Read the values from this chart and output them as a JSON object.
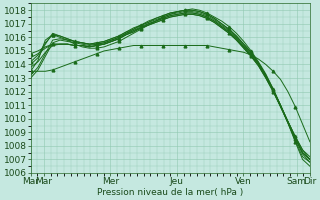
{
  "xlabel": "Pression niveau de la mer( hPa )",
  "background_color": "#c5e8e0",
  "plot_bg_color": "#c5e8e0",
  "grid_color": "#90c8b0",
  "line_color": "#1a6b1a",
  "ylim": [
    1006,
    1018.5
  ],
  "yticks": [
    1006,
    1007,
    1008,
    1009,
    1010,
    1011,
    1012,
    1013,
    1014,
    1015,
    1016,
    1017,
    1018
  ],
  "xtick_labels": [
    "Mar",
    "Mar",
    "Mer",
    "Jeu",
    "Ven",
    "Sam",
    "Dir"
  ],
  "xtick_positions": [
    0,
    8,
    48,
    88,
    128,
    160,
    168
  ],
  "total_hours": 168,
  "lines": [
    {
      "y": [
        1013.5,
        1014.3,
        1015.8,
        1016.2,
        1016.0,
        1015.8,
        1015.5,
        1015.3,
        1015.2,
        1015.2,
        1015.3,
        1015.5,
        1015.7,
        1016.0,
        1016.3,
        1016.6,
        1016.9,
        1017.2,
        1017.5,
        1017.7,
        1017.9,
        1018.0,
        1018.1,
        1018.0,
        1017.8,
        1017.5,
        1017.2,
        1016.8,
        1016.3,
        1015.7,
        1015.0,
        1014.2,
        1013.3,
        1012.2,
        1011.0,
        1009.7,
        1008.3,
        1007.0,
        1006.5
      ],
      "marker": true
    },
    {
      "y": [
        1014.0,
        1014.5,
        1015.5,
        1016.3,
        1016.1,
        1015.9,
        1015.7,
        1015.6,
        1015.5,
        1015.5,
        1015.6,
        1015.8,
        1016.0,
        1016.3,
        1016.6,
        1016.9,
        1017.1,
        1017.4,
        1017.6,
        1017.8,
        1017.9,
        1018.0,
        1018.0,
        1017.9,
        1017.7,
        1017.4,
        1017.0,
        1016.6,
        1016.1,
        1015.5,
        1014.9,
        1014.1,
        1013.2,
        1012.1,
        1010.9,
        1009.7,
        1008.4,
        1007.2,
        1006.8
      ],
      "marker": false
    },
    {
      "y": [
        1014.2,
        1014.7,
        1015.6,
        1016.2,
        1016.1,
        1015.9,
        1015.7,
        1015.6,
        1015.5,
        1015.6,
        1015.7,
        1015.9,
        1016.1,
        1016.4,
        1016.7,
        1016.9,
        1017.2,
        1017.4,
        1017.6,
        1017.8,
        1017.9,
        1018.0,
        1018.0,
        1017.9,
        1017.7,
        1017.4,
        1017.0,
        1016.6,
        1016.1,
        1015.5,
        1014.9,
        1014.1,
        1013.2,
        1012.1,
        1010.9,
        1009.7,
        1008.5,
        1007.5,
        1007.0
      ],
      "marker": true
    },
    {
      "y": [
        1013.2,
        1013.8,
        1014.8,
        1015.8,
        1015.9,
        1015.8,
        1015.7,
        1015.6,
        1015.5,
        1015.6,
        1015.7,
        1015.9,
        1016.1,
        1016.4,
        1016.6,
        1016.9,
        1017.1,
        1017.3,
        1017.5,
        1017.7,
        1017.8,
        1017.9,
        1017.9,
        1017.8,
        1017.6,
        1017.3,
        1016.9,
        1016.5,
        1016.0,
        1015.4,
        1014.8,
        1014.1,
        1013.2,
        1012.2,
        1011.0,
        1009.8,
        1008.6,
        1007.4,
        1006.8
      ],
      "marker": false
    },
    {
      "y": [
        1013.0,
        1013.6,
        1014.6,
        1015.6,
        1015.8,
        1015.7,
        1015.6,
        1015.5,
        1015.4,
        1015.5,
        1015.6,
        1015.8,
        1016.0,
        1016.3,
        1016.5,
        1016.8,
        1017.0,
        1017.2,
        1017.4,
        1017.6,
        1017.7,
        1017.8,
        1017.8,
        1017.7,
        1017.5,
        1017.2,
        1016.8,
        1016.4,
        1015.9,
        1015.3,
        1014.7,
        1014.0,
        1013.1,
        1012.1,
        1011.0,
        1009.8,
        1008.6,
        1007.5,
        1007.0
      ],
      "marker": false
    },
    {
      "y": [
        1013.5,
        1013.5,
        1013.5,
        1013.6,
        1013.8,
        1014.0,
        1014.2,
        1014.4,
        1014.6,
        1014.8,
        1015.0,
        1015.1,
        1015.2,
        1015.3,
        1015.4,
        1015.4,
        1015.4,
        1015.4,
        1015.4,
        1015.4,
        1015.4,
        1015.4,
        1015.4,
        1015.4,
        1015.4,
        1015.3,
        1015.2,
        1015.1,
        1015.0,
        1014.9,
        1014.7,
        1014.4,
        1014.0,
        1013.5,
        1012.9,
        1012.0,
        1010.9,
        1009.6,
        1008.3
      ],
      "marker": true
    },
    {
      "y": [
        1014.5,
        1014.8,
        1015.2,
        1015.5,
        1015.5,
        1015.5,
        1015.4,
        1015.4,
        1015.3,
        1015.4,
        1015.5,
        1015.7,
        1015.9,
        1016.2,
        1016.5,
        1016.7,
        1017.0,
        1017.2,
        1017.4,
        1017.6,
        1017.7,
        1017.8,
        1017.8,
        1017.7,
        1017.5,
        1017.2,
        1016.8,
        1016.4,
        1015.9,
        1015.3,
        1014.7,
        1014.0,
        1013.1,
        1012.1,
        1011.0,
        1009.8,
        1008.6,
        1007.5,
        1007.0
      ],
      "marker": false
    },
    {
      "y": [
        1014.8,
        1015.0,
        1015.3,
        1015.5,
        1015.5,
        1015.5,
        1015.4,
        1015.4,
        1015.3,
        1015.4,
        1015.5,
        1015.7,
        1015.9,
        1016.2,
        1016.4,
        1016.7,
        1016.9,
        1017.1,
        1017.3,
        1017.5,
        1017.6,
        1017.7,
        1017.7,
        1017.6,
        1017.4,
        1017.1,
        1016.7,
        1016.3,
        1015.8,
        1015.2,
        1014.6,
        1013.9,
        1013.0,
        1012.0,
        1010.9,
        1009.8,
        1008.7,
        1007.7,
        1007.2
      ],
      "marker": true
    },
    {
      "y": [
        1013.8,
        1014.2,
        1014.9,
        1015.4,
        1015.5,
        1015.5,
        1015.4,
        1015.4,
        1015.3,
        1015.4,
        1015.5,
        1015.7,
        1015.9,
        1016.2,
        1016.4,
        1016.7,
        1016.9,
        1017.1,
        1017.3,
        1017.5,
        1017.6,
        1017.7,
        1017.7,
        1017.6,
        1017.4,
        1017.1,
        1016.7,
        1016.3,
        1015.8,
        1015.2,
        1014.6,
        1013.9,
        1013.0,
        1012.0,
        1010.9,
        1009.8,
        1008.7,
        1007.7,
        1007.0
      ],
      "marker": false
    }
  ],
  "font_size": 6.5,
  "figsize": [
    3.2,
    2.0
  ],
  "dpi": 100
}
